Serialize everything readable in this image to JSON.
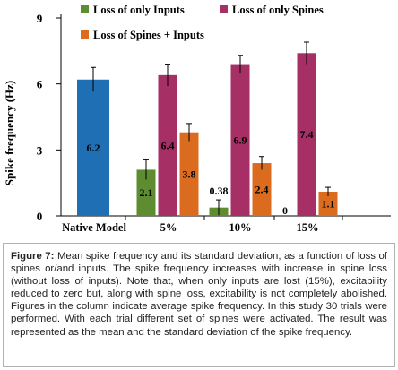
{
  "chart_data": {
    "type": "bar",
    "title": "",
    "xlabel": "",
    "ylabel": "Spike frequency (Hz)",
    "ylim": [
      0,
      9
    ],
    "yticks": [
      0,
      3,
      6,
      9
    ],
    "categories": [
      "Native Model",
      "5%",
      "10%",
      "15%"
    ],
    "legend_position": "top",
    "series": [
      {
        "name": "Native Model",
        "color": "#1f6fb5",
        "values": [
          6.2,
          null,
          null,
          null
        ],
        "errors": [
          0.55,
          null,
          null,
          null
        ],
        "labels": [
          "6.2",
          null,
          null,
          null
        ]
      },
      {
        "name": "Loss of only Inputs",
        "color": "#5e8c31",
        "values": [
          null,
          2.1,
          0.38,
          0.0
        ],
        "errors": [
          null,
          0.45,
          0.35,
          0.0
        ],
        "labels": [
          null,
          "2.1",
          "0.38",
          "0"
        ]
      },
      {
        "name": "Loss of only Spines",
        "color": "#a62f66",
        "values": [
          null,
          6.4,
          6.9,
          7.4
        ],
        "errors": [
          null,
          0.5,
          0.4,
          0.5
        ],
        "labels": [
          null,
          "6.4",
          "6.9",
          "7.4"
        ]
      },
      {
        "name": "Loss of Spines + Inputs",
        "color": "#db6b1e",
        "values": [
          null,
          3.8,
          2.4,
          1.1
        ],
        "errors": [
          null,
          0.4,
          0.3,
          0.2
        ],
        "labels": [
          null,
          "3.8",
          "2.4",
          "1.1"
        ]
      }
    ]
  },
  "caption": {
    "label": "Figure 7:",
    "text": "Mean spike frequency and its standard deviation, as a function of loss of spines or/and inputs. The spike frequency increases with increase in spine loss (without loss of inputs). Note that, when only inputs are lost (15%), excitability reduced to zero but, along with spine loss, excitability is not completely abolished. Figures in the column indicate average spike frequency. In this study 30 trials were performed. With each trial different set of spines were activated. The result was represented as the mean and the standard deviation of the spike frequency."
  }
}
